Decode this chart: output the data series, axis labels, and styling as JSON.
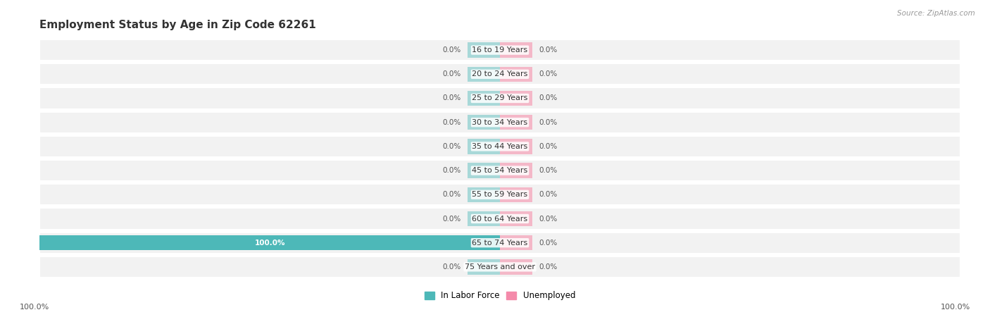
{
  "title": "Employment Status by Age in Zip Code 62261",
  "source": "Source: ZipAtlas.com",
  "categories": [
    "16 to 19 Years",
    "20 to 24 Years",
    "25 to 29 Years",
    "30 to 34 Years",
    "35 to 44 Years",
    "45 to 54 Years",
    "55 to 59 Years",
    "60 to 64 Years",
    "65 to 74 Years",
    "75 Years and over"
  ],
  "labor_force": [
    0.0,
    0.0,
    0.0,
    0.0,
    0.0,
    0.0,
    0.0,
    0.0,
    100.0,
    0.0
  ],
  "unemployed": [
    0.0,
    0.0,
    0.0,
    0.0,
    0.0,
    0.0,
    0.0,
    0.0,
    0.0,
    0.0
  ],
  "labor_force_color": "#4db8b8",
  "labor_force_stub_color": "#a8d8d8",
  "unemployed_color": "#f48aaa",
  "unemployed_stub_color": "#f4b8c8",
  "row_bg_color": "#f2f2f2",
  "row_border_color": "#dddddd",
  "white_bg": "#ffffff",
  "center_label_color": "#333333",
  "value_label_color": "#555555",
  "title_color": "#333333",
  "source_color": "#999999",
  "background_color": "#ffffff",
  "stub_size": 7.0,
  "legend_labels": [
    "In Labor Force",
    "Unemployed"
  ],
  "axis_end_label": "100.0%"
}
